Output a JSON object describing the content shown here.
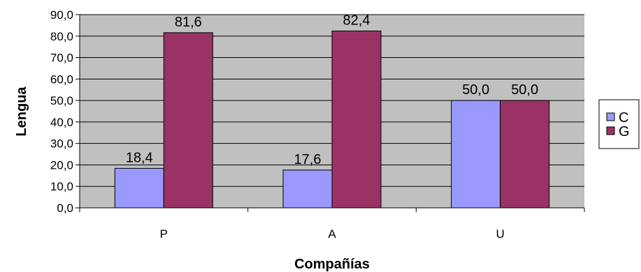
{
  "chart_data": {
    "type": "bar",
    "categories": [
      "P",
      "A",
      "U"
    ],
    "series": [
      {
        "name": "C",
        "values": [
          18.4,
          17.6,
          50.0
        ],
        "color": "#9999ff"
      },
      {
        "name": "G",
        "values": [
          81.6,
          82.4,
          50.0
        ],
        "color": "#993366"
      }
    ],
    "data_labels": [
      [
        "18,4",
        "17,6",
        "50,0"
      ],
      [
        "81,6",
        "82,4",
        "50,0"
      ]
    ],
    "xlabel": "Compañías",
    "ylabel": "Lengua",
    "ylim": [
      0,
      90
    ],
    "yticks": [
      "0,0",
      "10,0",
      "20,0",
      "30,0",
      "40,0",
      "50,0",
      "60,0",
      "70,0",
      "80,0",
      "90,0"
    ],
    "plot_background": "#c0c0c0",
    "grid": true,
    "legend_position": "right"
  }
}
